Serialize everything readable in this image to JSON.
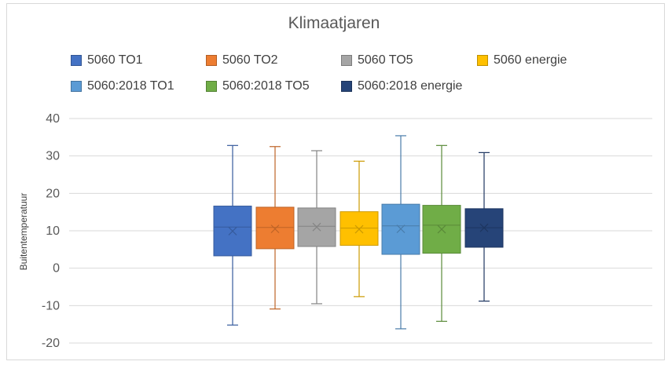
{
  "chart_data": {
    "type": "box",
    "title": "Klimaatjaren",
    "xlabel": "",
    "ylabel": "Buitentemperatuur",
    "ylim": [
      -20,
      40
    ],
    "yticks": [
      40,
      30,
      20,
      10,
      0,
      -10,
      -20
    ],
    "grid": true,
    "legend_position": "top",
    "series": [
      {
        "name": "5060 TO1",
        "color": "#4472c4",
        "min": -15.2,
        "q1": 3.3,
        "median": 11.0,
        "mean": 9.9,
        "q3": 16.6,
        "max": 32.8
      },
      {
        "name": "5060 TO2",
        "color": "#ed7d31",
        "min": -10.9,
        "q1": 5.2,
        "median": 10.9,
        "mean": 10.5,
        "q3": 16.3,
        "max": 32.5
      },
      {
        "name": "5060 TO5",
        "color": "#a5a5a5",
        "min": -9.5,
        "q1": 5.8,
        "median": 11.2,
        "mean": 11.0,
        "q3": 16.1,
        "max": 31.4
      },
      {
        "name": "5060 energie",
        "color": "#ffc000",
        "min": -7.6,
        "q1": 6.1,
        "median": 10.7,
        "mean": 10.4,
        "q3": 15.1,
        "max": 28.6
      },
      {
        "name": "5060:2018 TO1",
        "color": "#5b9bd5",
        "min": -16.2,
        "q1": 3.7,
        "median": 11.3,
        "mean": 10.5,
        "q3": 17.1,
        "max": 35.4
      },
      {
        "name": "5060:2018 TO5",
        "color": "#70ad47",
        "min": -14.2,
        "q1": 4.0,
        "median": 11.5,
        "mean": 10.4,
        "q3": 16.8,
        "max": 32.8
      },
      {
        "name": "5060:2018 energie",
        "color": "#264478",
        "min": -8.8,
        "q1": 5.6,
        "median": 10.8,
        "mean": 10.8,
        "q3": 15.9,
        "max": 30.9
      }
    ]
  }
}
